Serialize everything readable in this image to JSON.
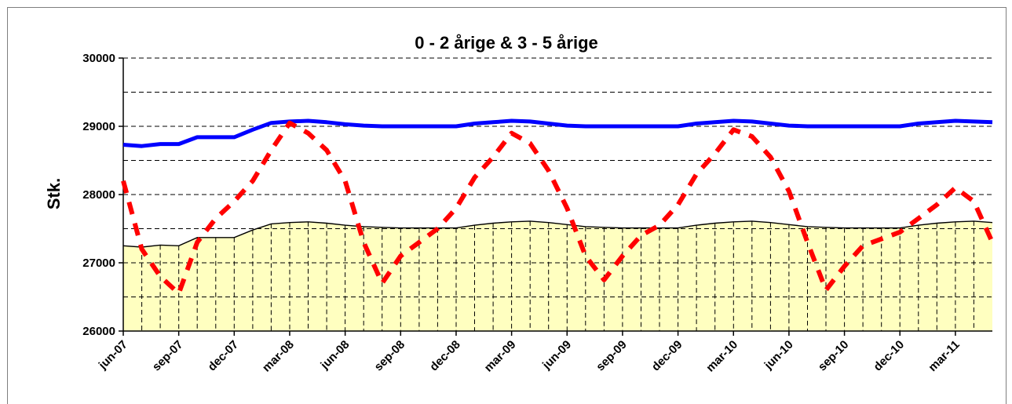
{
  "chart_data": {
    "type": "line",
    "title": "0 - 2 årige & 3 - 5 årige",
    "ylabel": "Stk.",
    "xlabel": "",
    "ylim": [
      26000,
      30000
    ],
    "yticks": [
      26000,
      27000,
      28000,
      29000,
      30000
    ],
    "grid": "horizontal dashed every 500",
    "categories": [
      "jun-07",
      "jul-07",
      "aug-07",
      "sep-07",
      "okt-07",
      "nov-07",
      "dec-07",
      "jan-08",
      "feb-08",
      "mar-08",
      "apr-08",
      "maj-08",
      "jun-08",
      "jul-08",
      "aug-08",
      "sep-08",
      "okt-08",
      "nov-08",
      "dec-08",
      "jan-09",
      "feb-09",
      "mar-09",
      "apr-09",
      "maj-09",
      "jun-09",
      "jul-09",
      "aug-09",
      "sep-09",
      "okt-09",
      "nov-09",
      "dec-09",
      "jan-10",
      "feb-10",
      "mar-10",
      "apr-10",
      "maj-10",
      "jun-10",
      "jul-10",
      "aug-10",
      "sep-10",
      "okt-10",
      "nov-10",
      "dec-10",
      "jan-11",
      "feb-11",
      "mar-11",
      "apr-11",
      "maj-11"
    ],
    "tick_labels": [
      "jun-07",
      "sep-07",
      "dec-07",
      "mar-08",
      "jun-08",
      "sep-08",
      "dec-08",
      "mar-09",
      "jun-09",
      "sep-09",
      "dec-09",
      "mar-10",
      "jun-10",
      "sep-10",
      "dec-10",
      "mar-11"
    ],
    "series": [
      {
        "style": "line",
        "color": "#0000ff",
        "values": [
          28730,
          28710,
          28740,
          28740,
          28840,
          28840,
          28840,
          28950,
          29050,
          29070,
          29080,
          29060,
          29030,
          29010,
          29000,
          29000,
          29000,
          29000,
          29000,
          29040,
          29060,
          29080,
          29070,
          29040,
          29010,
          29000,
          29000,
          29000,
          29000,
          29000,
          29000,
          29040,
          29060,
          29080,
          29070,
          29040,
          29010,
          29000,
          29000,
          29000,
          29000,
          29000,
          29000,
          29040,
          29060,
          29080,
          29070,
          29060
        ]
      },
      {
        "style": "dashed",
        "color": "#ff0000",
        "values": [
          28200,
          27200,
          26800,
          26550,
          27300,
          27650,
          27900,
          28200,
          28650,
          29050,
          28900,
          28650,
          28200,
          27300,
          26700,
          27100,
          27300,
          27500,
          27800,
          28250,
          28550,
          28900,
          28750,
          28350,
          27800,
          27100,
          26750,
          27100,
          27400,
          27550,
          27850,
          28300,
          28600,
          28950,
          28850,
          28550,
          28050,
          27300,
          26600,
          26950,
          27250,
          27350,
          27450,
          27650,
          27850,
          28100,
          27900,
          27300
        ]
      },
      {
        "style": "area",
        "color": "#ffffc0",
        "values": [
          27250,
          27230,
          27260,
          27250,
          27370,
          27370,
          27370,
          27480,
          27570,
          27590,
          27600,
          27580,
          27550,
          27530,
          27520,
          27510,
          27510,
          27510,
          27510,
          27550,
          27580,
          27600,
          27610,
          27590,
          27560,
          27530,
          27520,
          27510,
          27510,
          27510,
          27510,
          27550,
          27580,
          27600,
          27610,
          27590,
          27560,
          27530,
          27520,
          27510,
          27510,
          27510,
          27510,
          27550,
          27580,
          27600,
          27610,
          27590
        ]
      }
    ]
  }
}
